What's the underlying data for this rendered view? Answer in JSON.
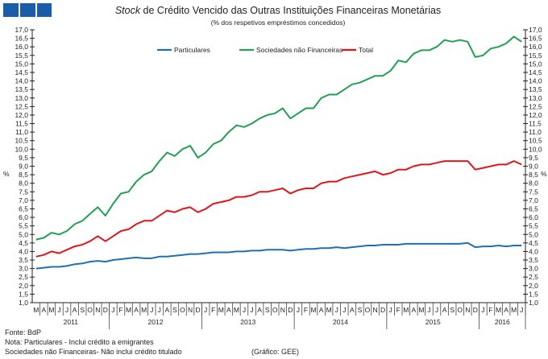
{
  "chart_data": {
    "type": "line",
    "title_italic": "Stock",
    "title_rest": " de Crédito Vencido das Outras Instituições Financeiras Monetárias",
    "subtitle": "(% dos respetivos empréstimos concedidos)",
    "ylabel": "%",
    "ylim": [
      1.0,
      17.0
    ],
    "ytick_step": 0.5,
    "yticks": [
      "1,0",
      "1,5",
      "2,0",
      "2,5",
      "3,0",
      "3,5",
      "4,0",
      "4,5",
      "5,0",
      "5,5",
      "6,0",
      "6,5",
      "7,0",
      "7,5",
      "8,0",
      "8,5",
      "9,0",
      "9,5",
      "10,0",
      "10,5",
      "11,0",
      "11,5",
      "12,0",
      "12,5",
      "13,0",
      "13,5",
      "14,0",
      "14,5",
      "15,0",
      "15,5",
      "16,0",
      "16,5",
      "17,0"
    ],
    "months": [
      "M",
      "A",
      "M",
      "J",
      "J",
      "A",
      "S",
      "O",
      "N",
      "D",
      "J",
      "F",
      "M",
      "A",
      "M",
      "J",
      "J",
      "A",
      "S",
      "O",
      "N",
      "D",
      "J",
      "F",
      "M",
      "A",
      "M",
      "J",
      "J",
      "A",
      "S",
      "O",
      "N",
      "D",
      "J",
      "F",
      "M",
      "A",
      "M",
      "J",
      "J",
      "A",
      "S",
      "O",
      "N",
      "D",
      "J",
      "F",
      "M",
      "A",
      "M",
      "J",
      "J",
      "A",
      "S",
      "O",
      "N",
      "D",
      "J",
      "F",
      "M",
      "A",
      "M",
      "J"
    ],
    "years": [
      {
        "label": "2011",
        "months": 10
      },
      {
        "label": "2012",
        "months": 12
      },
      {
        "label": "2013",
        "months": 12
      },
      {
        "label": "2014",
        "months": 12
      },
      {
        "label": "2015",
        "months": 12
      },
      {
        "label": "2016",
        "months": 6
      }
    ],
    "legend_position": "top-center",
    "series": [
      {
        "name": "Particulares",
        "color": "#1f6fb4",
        "values": [
          3.0,
          3.05,
          3.1,
          3.1,
          3.15,
          3.25,
          3.3,
          3.4,
          3.45,
          3.4,
          3.5,
          3.55,
          3.6,
          3.65,
          3.6,
          3.6,
          3.7,
          3.7,
          3.75,
          3.8,
          3.85,
          3.85,
          3.9,
          3.95,
          3.95,
          3.95,
          4.0,
          4.0,
          4.05,
          4.05,
          4.1,
          4.1,
          4.1,
          4.05,
          4.1,
          4.15,
          4.15,
          4.2,
          4.2,
          4.25,
          4.2,
          4.25,
          4.3,
          4.35,
          4.35,
          4.4,
          4.4,
          4.4,
          4.45,
          4.45,
          4.45,
          4.45,
          4.45,
          4.45,
          4.45,
          4.45,
          4.5,
          4.25,
          4.3,
          4.3,
          4.35,
          4.3,
          4.35,
          4.35
        ]
      },
      {
        "name": "Sociedades não Financeiras",
        "color": "#21a052",
        "values": [
          4.7,
          4.8,
          5.1,
          5.0,
          5.2,
          5.6,
          5.8,
          6.2,
          6.6,
          6.1,
          6.8,
          7.4,
          7.5,
          8.1,
          8.5,
          8.7,
          9.3,
          9.8,
          9.6,
          10.0,
          10.2,
          9.5,
          9.8,
          10.3,
          10.5,
          11.0,
          11.4,
          11.3,
          11.5,
          11.8,
          12.0,
          12.1,
          12.4,
          11.8,
          12.1,
          12.4,
          12.4,
          13.0,
          13.2,
          13.2,
          13.5,
          13.8,
          13.9,
          14.1,
          14.3,
          14.3,
          14.6,
          15.2,
          15.1,
          15.6,
          15.8,
          15.8,
          16.0,
          16.4,
          16.3,
          16.4,
          16.3,
          15.4,
          15.5,
          15.9,
          16.0,
          16.2,
          16.6,
          16.3
        ]
      },
      {
        "name": "Total",
        "color": "#e0161b",
        "values": [
          3.7,
          3.8,
          4.0,
          3.9,
          4.1,
          4.3,
          4.4,
          4.6,
          4.9,
          4.6,
          4.9,
          5.2,
          5.3,
          5.6,
          5.8,
          5.8,
          6.1,
          6.4,
          6.3,
          6.5,
          6.6,
          6.3,
          6.5,
          6.8,
          6.9,
          7.0,
          7.2,
          7.2,
          7.3,
          7.5,
          7.5,
          7.6,
          7.7,
          7.4,
          7.6,
          7.7,
          7.7,
          8.0,
          8.1,
          8.1,
          8.3,
          8.4,
          8.5,
          8.6,
          8.7,
          8.5,
          8.6,
          8.8,
          8.8,
          9.0,
          9.1,
          9.1,
          9.2,
          9.3,
          9.3,
          9.3,
          9.3,
          8.8,
          8.9,
          9.0,
          9.1,
          9.1,
          9.3,
          9.1
        ]
      }
    ]
  },
  "logo_color": "#1a5ea8",
  "footer": {
    "source": "Fonte: BdP",
    "note1": "Nota: Particulares - Inclui crédito a emigrantes",
    "note2": "Sociedades não Financeiras- Não inclui crédito titulado",
    "credit": "(Gráfico: GEE)"
  }
}
